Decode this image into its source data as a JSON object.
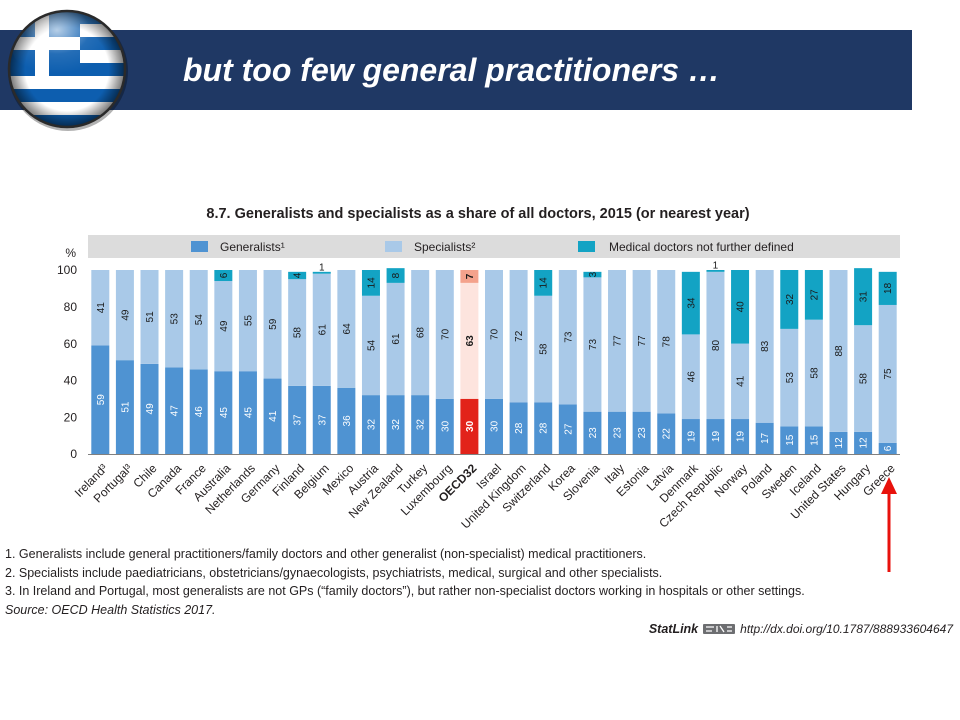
{
  "colors": {
    "header_background": "#1f3864",
    "title_text": "#ffffff",
    "arrow": "#e8120c",
    "legend_band": "#dcdcdc",
    "flag_blue": "#0d5eaf"
  },
  "slide": {
    "title": "but too few general practitioners …",
    "flag_icon": "greece-flag-icon"
  },
  "chart_data": {
    "type": "bar",
    "stacked": true,
    "title": "8.7. Generalists and specialists as a share of all doctors, 2015 (or nearest year)",
    "ylabel": "%",
    "ylim": [
      0,
      100
    ],
    "yticks": [
      0,
      20,
      40,
      60,
      80,
      100
    ],
    "grid": false,
    "legend_position": "top",
    "categories": [
      "Ireland³",
      "Portugal³",
      "Chile",
      "Canada",
      "France",
      "Australia",
      "Netherlands",
      "Germany",
      "Finland",
      "Belgium",
      "Mexico",
      "Austria",
      "New Zealand",
      "Turkey",
      "Luxembourg",
      "OECD32",
      "Israel",
      "United Kingdom",
      "Switzerland",
      "Korea",
      "Slovenia",
      "Italy",
      "Estonia",
      "Latvia",
      "Denmark",
      "Czech Republic",
      "Norway",
      "Poland",
      "Sweden",
      "Iceland",
      "United States",
      "Hungary",
      "Greece"
    ],
    "series": [
      {
        "name": "Generalists¹",
        "color": "#4f93d2",
        "label_color": "#ffffff",
        "values": [
          59,
          51,
          49,
          47,
          46,
          45,
          45,
          41,
          37,
          37,
          36,
          32,
          32,
          32,
          30,
          30,
          30,
          28,
          28,
          27,
          23,
          23,
          23,
          22,
          19,
          19,
          19,
          17,
          15,
          15,
          12,
          12,
          6
        ]
      },
      {
        "name": "Specialists²",
        "color": "#a9c9e8",
        "label_color": "#1a1a1a",
        "values": [
          41,
          49,
          51,
          53,
          54,
          49,
          55,
          59,
          58,
          61,
          64,
          54,
          61,
          68,
          70,
          63,
          70,
          72,
          58,
          73,
          73,
          77,
          77,
          78,
          46,
          80,
          41,
          83,
          53,
          58,
          88,
          58,
          75
        ]
      },
      {
        "name": "Medical doctors not further defined",
        "color": "#13a3c4",
        "label_color": "#1a1a1a",
        "values": [
          null,
          null,
          null,
          null,
          null,
          6,
          null,
          null,
          4,
          1,
          null,
          14,
          8,
          null,
          null,
          7,
          null,
          null,
          14,
          null,
          3,
          null,
          null,
          null,
          34,
          1,
          40,
          null,
          32,
          27,
          null,
          31,
          18
        ]
      }
    ],
    "highlight": {
      "category": "OECD32",
      "colors": [
        "#e2231a",
        "#fde4de",
        "#f4a28c"
      ],
      "label_colors": [
        "#ffffff",
        "#1a1a1a",
        "#1a1a1a"
      ]
    }
  },
  "annotation": {
    "icon": "red-up-arrow-icon"
  },
  "footnotes": [
    "1. Generalists include general practitioners/family doctors and other generalist (non-specialist) medical practitioners.",
    "2. Specialists include paediatricians, obstetricians/gynaecologists, psychiatrists, medical, surgical and other specialists.",
    "3. In Ireland and Portugal, most generalists are not GPs (“family doctors”), but rather non-specialist doctors working in hospitals or other settings."
  ],
  "source": "Source: OECD Health Statistics 2017.",
  "statlink": {
    "label": "StatLink",
    "icon": "statlink-logo-icon",
    "url": "http://dx.doi.org/10.1787/888933604647"
  }
}
